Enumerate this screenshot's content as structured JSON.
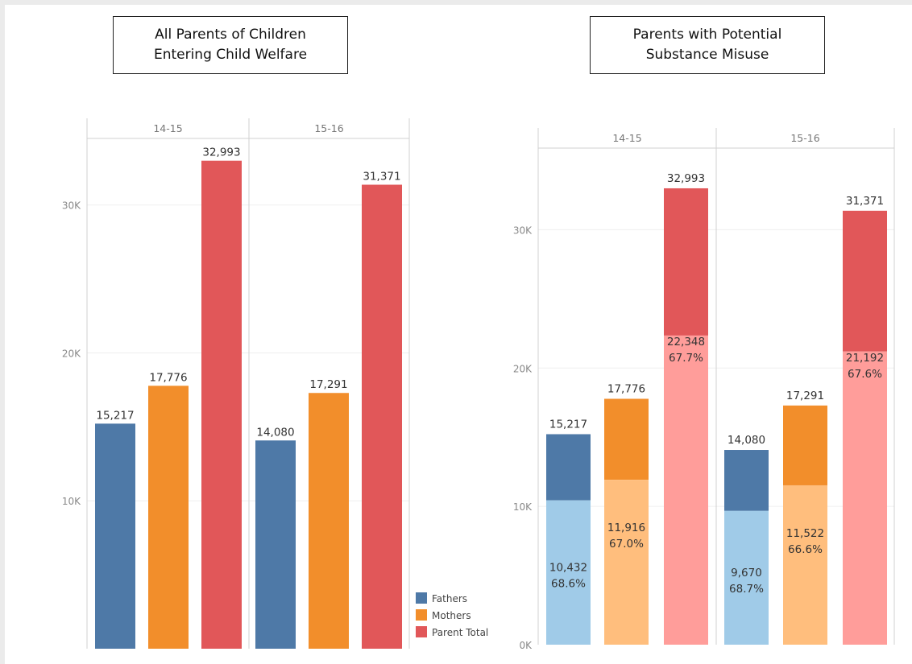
{
  "titles": {
    "left": [
      "All Parents of Children",
      "Entering Child Welfare"
    ],
    "right": [
      "Parents with Potential",
      "Substance Misuse"
    ]
  },
  "colors": {
    "fathers": "#4e79a7",
    "mothers": "#f28e2b",
    "total": "#e15759",
    "fathers_light": "#a0cbe8",
    "mothers_light": "#ffbe7d",
    "total_light": "#ff9d9a"
  },
  "legend": {
    "items": [
      {
        "label": "Fathers",
        "color": "#4e79a7"
      },
      {
        "label": "Mothers",
        "color": "#f28e2b"
      },
      {
        "label": "Parent Total",
        "color": "#e15759"
      }
    ]
  },
  "chart_data": [
    {
      "type": "bar",
      "title": "All Parents of Children Entering Child Welfare",
      "panels": [
        "14-15",
        "15-16"
      ],
      "categories": [
        "Fathers",
        "Mothers",
        "Parent Total"
      ],
      "series": [
        {
          "panel": "14-15",
          "values": [
            15217,
            17776,
            32993
          ],
          "labels": [
            "15,217",
            "17,776",
            "32,993"
          ]
        },
        {
          "panel": "15-16",
          "values": [
            14080,
            17291,
            31371
          ],
          "labels": [
            "14,080",
            "17,291",
            "31,371"
          ]
        }
      ],
      "yticks": [
        10000,
        20000,
        30000
      ],
      "ytick_labels": [
        "10K",
        "20K",
        "30K"
      ],
      "ylim": [
        0,
        34500
      ],
      "grid": true
    },
    {
      "type": "bar",
      "stacked": true,
      "title": "Parents with Potential Substance Misuse",
      "panels": [
        "14-15",
        "15-16"
      ],
      "categories": [
        "Fathers",
        "Mothers",
        "Parent Total"
      ],
      "series": [
        {
          "panel": "14-15",
          "totals": [
            15217,
            17776,
            32993
          ],
          "total_labels": [
            "15,217",
            "17,776",
            "32,993"
          ],
          "misuse": [
            10432,
            11916,
            22348
          ],
          "misuse_labels": [
            "10,432",
            "11,916",
            "22,348"
          ],
          "pct_labels": [
            "68.6%",
            "67.0%",
            "67.7%"
          ]
        },
        {
          "panel": "15-16",
          "totals": [
            14080,
            17291,
            31371
          ],
          "total_labels": [
            "14,080",
            "17,291",
            "31,371"
          ],
          "misuse": [
            9670,
            11522,
            21192
          ],
          "misuse_labels": [
            "9,670",
            "11,522",
            "21,192"
          ],
          "pct_labels": [
            "68.7%",
            "66.6%",
            "67.6%"
          ]
        }
      ],
      "yticks": [
        0,
        10000,
        20000,
        30000
      ],
      "ytick_labels": [
        "0K",
        "10K",
        "20K",
        "30K"
      ],
      "ylim": [
        0,
        35900
      ],
      "grid": true
    }
  ]
}
